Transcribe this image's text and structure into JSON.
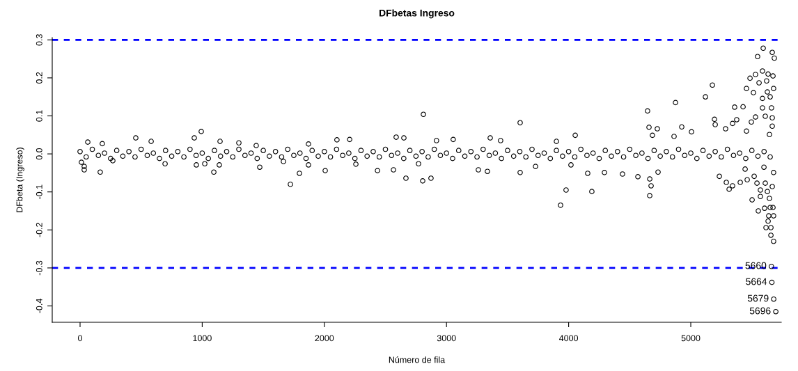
{
  "chart_data": {
    "type": "scatter",
    "title": "DFbetas Ingreso",
    "xlabel": "Número de fila",
    "ylabel": "DFbeta (Ingreso)",
    "xlim": [
      -228,
      5741
    ],
    "ylim": [
      -0.443,
      0.306
    ],
    "xticks": [
      0,
      1000,
      2000,
      3000,
      4000,
      5000
    ],
    "yticks": [
      {
        "value": -0.4,
        "label": "-0.4"
      },
      {
        "value": -0.3,
        "label": "-0.3"
      },
      {
        "value": -0.2,
        "label": "-0.2"
      },
      {
        "value": -0.1,
        "label": "-0.1"
      },
      {
        "value": 0,
        "label": "0.0"
      },
      {
        "value": 0.1,
        "label": "0.1"
      },
      {
        "value": 0.2,
        "label": "0.2"
      },
      {
        "value": 0.3,
        "label": "0.3"
      }
    ],
    "marker": "circle",
    "grid": false,
    "legend": false,
    "ref_lines": [
      {
        "axis": "y",
        "value": 0.3,
        "color": "#0000ff",
        "line_style": "dashed"
      },
      {
        "axis": "y",
        "value": -0.3,
        "color": "#0000ff",
        "line_style": "dashed"
      }
    ],
    "annotations": [
      {
        "text": "5660",
        "x": 5660,
        "y": -0.296
      },
      {
        "text": "5664",
        "x": 5664,
        "y": -0.338
      },
      {
        "text": "5679",
        "x": 5679,
        "y": -0.382
      },
      {
        "text": "5696",
        "x": 5696,
        "y": -0.415
      }
    ],
    "series": [
      {
        "color": "#000000",
        "x": [
          0,
          50,
          100,
          150,
          200,
          250,
          300,
          350,
          400,
          450,
          500,
          550,
          600,
          650,
          700,
          750,
          800,
          850,
          900,
          950,
          1000,
          1050,
          1100,
          1150,
          1200,
          1250,
          1300,
          1350,
          1400,
          1450,
          1500,
          1550,
          1600,
          1650,
          1700,
          1750,
          1800,
          1850,
          1900,
          1950,
          2000,
          2050,
          2100,
          2150,
          2200,
          2250,
          2300,
          2350,
          2400,
          2450,
          2500,
          2550,
          2600,
          2650,
          2700,
          2750,
          2800,
          2850,
          2900,
          2950,
          3000,
          3050,
          3100,
          3150,
          3200,
          3250,
          3300,
          3350,
          3400,
          3450,
          3500,
          3550,
          3600,
          3650,
          3700,
          3750,
          3800,
          3850,
          3900,
          3950,
          4000,
          4050,
          4100,
          4150,
          4200,
          4250,
          4300,
          4350,
          4400,
          4450,
          4500,
          4550,
          4600,
          4650,
          4700,
          4750,
          4800,
          4850,
          4900,
          4950,
          5000,
          5050,
          5100,
          5150,
          5200,
          5250,
          5300,
          5350,
          5400,
          5450,
          5500,
          5550,
          5600,
          5650
        ],
        "values": [
          0.006,
          -0.008,
          0.012,
          -0.004,
          0.002,
          -0.012,
          0.009,
          -0.006,
          0.006,
          -0.008,
          0.012,
          -0.004,
          0.002,
          -0.012,
          0.009,
          -0.006,
          0.006,
          -0.008,
          0.012,
          -0.004,
          0.002,
          -0.012,
          0.009,
          -0.006,
          0.006,
          -0.008,
          0.012,
          -0.004,
          0.002,
          -0.012,
          0.009,
          -0.006,
          0.006,
          -0.008,
          0.012,
          -0.004,
          0.002,
          -0.012,
          0.009,
          -0.006,
          0.006,
          -0.008,
          0.012,
          -0.004,
          0.002,
          -0.012,
          0.009,
          -0.006,
          0.006,
          -0.008,
          0.012,
          -0.004,
          0.002,
          -0.012,
          0.009,
          -0.006,
          0.006,
          -0.008,
          0.012,
          -0.004,
          0.002,
          -0.012,
          0.009,
          -0.006,
          0.006,
          -0.008,
          0.012,
          -0.004,
          0.002,
          -0.012,
          0.009,
          -0.006,
          0.006,
          -0.008,
          0.012,
          -0.004,
          0.002,
          -0.012,
          0.009,
          -0.006,
          0.006,
          -0.008,
          0.012,
          -0.004,
          0.002,
          -0.012,
          0.009,
          -0.006,
          0.006,
          -0.008,
          0.012,
          -0.004,
          0.002,
          -0.012,
          0.009,
          -0.006,
          0.006,
          -0.008,
          0.012,
          -0.004,
          0.002,
          -0.012,
          0.009,
          -0.006,
          0.006,
          -0.008,
          0.012,
          -0.004,
          0.002,
          -0.012,
          0.009,
          -0.006,
          0.006,
          -0.008
        ]
      },
      {
        "color": "#000000",
        "x": [
          5593,
          5547,
          5667,
          5684,
          5587,
          5485,
          5530,
          5633,
          5673,
          5559,
          5621,
          5456,
          5513,
          5627,
          5678,
          5177,
          5120,
          5587,
          5650,
          4875,
          5359,
          5428,
          5587,
          5661,
          4646,
          5194,
          5200,
          4658,
          4726,
          4926,
          5376,
          5342,
          5530,
          5610,
          5667,
          5667,
          5006,
          5285,
          5496,
          5456,
          4686,
          4054,
          4863,
          5644
        ],
        "values": [
          0.278,
          0.256,
          0.267,
          0.252,
          0.218,
          0.199,
          0.209,
          0.21,
          0.205,
          0.187,
          0.192,
          0.172,
          0.161,
          0.163,
          0.172,
          0.181,
          0.15,
          0.146,
          0.15,
          0.135,
          0.123,
          0.124,
          0.121,
          0.121,
          0.113,
          0.091,
          0.077,
          0.07,
          0.066,
          0.071,
          0.09,
          0.08,
          0.097,
          0.099,
          0.095,
          0.073,
          0.058,
          0.066,
          0.084,
          0.06,
          0.049,
          0.049,
          0.046,
          0.051
        ]
      },
      {
        "color": "#000000",
        "x": [
          4190,
          4664,
          4664,
          4675,
          4156,
          4293,
          4441,
          4567,
          4732,
          5234,
          5291,
          5314,
          5342,
          5405,
          5502,
          5553,
          5604,
          5570,
          5616,
          5656,
          5633,
          5678,
          5638,
          5656,
          5678,
          5650,
          5673,
          5644,
          5667,
          5610,
          5627,
          5570,
          5542,
          5462,
          5678,
          5445,
          5519,
          5599,
          5660,
          5664,
          5679,
          5696
        ],
        "values": [
          -0.099,
          -0.11,
          -0.066,
          -0.084,
          -0.051,
          -0.049,
          -0.053,
          -0.06,
          -0.048,
          -0.059,
          -0.075,
          -0.093,
          -0.084,
          -0.075,
          -0.121,
          -0.15,
          -0.143,
          -0.112,
          -0.194,
          -0.194,
          -0.177,
          -0.163,
          -0.163,
          -0.214,
          -0.23,
          -0.141,
          -0.141,
          -0.117,
          -0.086,
          -0.077,
          -0.099,
          -0.095,
          -0.077,
          -0.068,
          -0.049,
          -0.04,
          -0.059,
          -0.035,
          -0.296,
          -0.338,
          -0.382,
          -0.415
        ]
      },
      {
        "color": "#000000",
        "x": [
          63,
          182,
          456,
          935,
          992,
          582,
          1146,
          1300,
          1442,
          1870,
          11,
          34,
          34,
          165,
          696,
          952,
          1021,
          1095,
          1140,
          1471,
          1722,
          1796,
          1870,
          268,
          1665,
          2811,
          3603,
          2103,
          2207,
          2588,
          2651,
          3055,
          3358,
          2918,
          3443,
          3900,
          2007,
          2435,
          2566,
          2668,
          2805,
          2873,
          3261,
          3335,
          3603,
          3979,
          3934,
          2258,
          2771,
          3729,
          4019
        ],
        "values": [
          0.031,
          0.027,
          0.042,
          0.042,
          0.059,
          0.033,
          0.033,
          0.029,
          0.022,
          0.026,
          -0.022,
          -0.033,
          -0.042,
          -0.048,
          -0.026,
          -0.029,
          -0.026,
          -0.048,
          -0.029,
          -0.035,
          -0.08,
          -0.051,
          -0.029,
          -0.018,
          -0.02,
          0.104,
          0.082,
          0.037,
          0.038,
          0.044,
          0.042,
          0.038,
          0.042,
          0.035,
          0.035,
          0.033,
          -0.044,
          -0.044,
          -0.042,
          -0.064,
          -0.071,
          -0.064,
          -0.042,
          -0.046,
          -0.049,
          -0.095,
          -0.135,
          -0.027,
          -0.026,
          -0.033,
          -0.029
        ]
      }
    ]
  }
}
